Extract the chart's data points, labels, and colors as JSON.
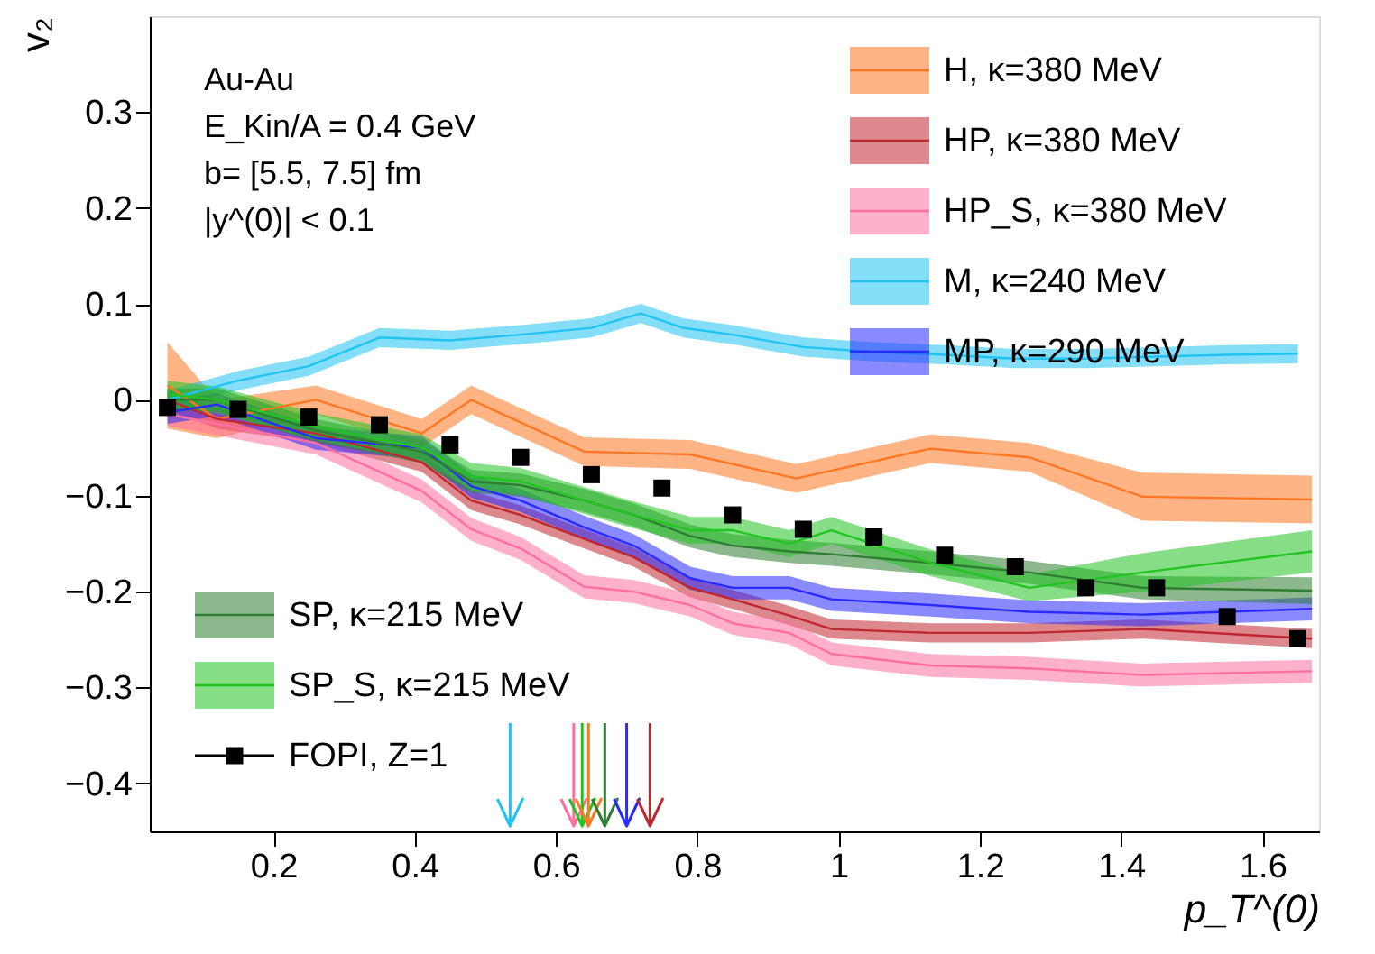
{
  "chart_data": {
    "type": "line",
    "xlabel": "p_T^(0)",
    "ylabel": "v₂",
    "xlim": [
      0.025,
      1.68
    ],
    "ylim": [
      -0.45,
      0.4
    ],
    "xticks": [
      0.2,
      0.4,
      0.6,
      0.8,
      1,
      1.2,
      1.4,
      1.6
    ],
    "yticks": [
      -0.4,
      -0.3,
      -0.2,
      -0.1,
      0,
      0.1,
      0.2,
      0.3
    ],
    "grid": false,
    "legend": "top right",
    "annotations": [
      "Au-Au",
      "E_Kin/A = 0.4 GeV",
      "b= [5.5, 7.5] fm",
      "|y^(0)| < 0.1"
    ],
    "series": [
      {
        "name": "H, κ=380 MeV",
        "color": "#ff7722",
        "x": [
          0.05,
          0.12,
          0.26,
          0.41,
          0.48,
          0.64,
          0.79,
          0.94,
          1.13,
          1.27,
          1.43,
          1.67
        ],
        "values": [
          0.015,
          -0.02,
          0.0,
          -0.035,
          0.0,
          -0.054,
          -0.057,
          -0.082,
          -0.051,
          -0.06,
          -0.101,
          -0.104
        ],
        "lower": [
          -0.03,
          -0.04,
          -0.015,
          -0.05,
          -0.015,
          -0.069,
          -0.072,
          -0.097,
          -0.066,
          -0.075,
          -0.126,
          -0.129
        ],
        "upper": [
          0.06,
          0.0,
          0.015,
          -0.02,
          0.015,
          -0.039,
          -0.042,
          -0.067,
          -0.036,
          -0.045,
          -0.076,
          -0.079
        ]
      },
      {
        "name": "HP, κ=380 MeV",
        "color": "#c0262d",
        "x": [
          0.05,
          0.12,
          0.26,
          0.41,
          0.48,
          0.55,
          0.64,
          0.71,
          0.79,
          0.85,
          0.93,
          0.99,
          1.13,
          1.27,
          1.43,
          1.67
        ],
        "values": [
          0.0,
          -0.02,
          -0.035,
          -0.065,
          -0.105,
          -0.12,
          -0.145,
          -0.164,
          -0.196,
          -0.208,
          -0.225,
          -0.239,
          -0.243,
          -0.243,
          -0.239,
          -0.249
        ],
        "lower": [
          -0.01,
          -0.03,
          -0.045,
          -0.075,
          -0.115,
          -0.13,
          -0.155,
          -0.174,
          -0.206,
          -0.218,
          -0.235,
          -0.249,
          -0.253,
          -0.253,
          -0.249,
          -0.259
        ],
        "upper": [
          0.01,
          -0.01,
          -0.025,
          -0.055,
          -0.095,
          -0.11,
          -0.135,
          -0.154,
          -0.186,
          -0.198,
          -0.215,
          -0.229,
          -0.233,
          -0.233,
          -0.229,
          -0.239
        ]
      },
      {
        "name": "HP_S, κ=380 MeV",
        "color": "#ff6f9f",
        "x": [
          0.05,
          0.12,
          0.26,
          0.41,
          0.48,
          0.55,
          0.64,
          0.71,
          0.79,
          0.85,
          0.93,
          0.99,
          1.13,
          1.27,
          1.43,
          1.67
        ],
        "values": [
          -0.015,
          -0.025,
          -0.045,
          -0.095,
          -0.135,
          -0.155,
          -0.195,
          -0.2,
          -0.214,
          -0.233,
          -0.243,
          -0.265,
          -0.277,
          -0.28,
          -0.287,
          -0.283
        ],
        "lower": [
          -0.027,
          -0.037,
          -0.057,
          -0.107,
          -0.147,
          -0.167,
          -0.207,
          -0.212,
          -0.226,
          -0.245,
          -0.255,
          -0.277,
          -0.289,
          -0.292,
          -0.299,
          -0.295
        ],
        "upper": [
          -0.003,
          -0.013,
          -0.033,
          -0.083,
          -0.123,
          -0.143,
          -0.183,
          -0.188,
          -0.202,
          -0.221,
          -0.231,
          -0.253,
          -0.265,
          -0.268,
          -0.275,
          -0.271
        ]
      },
      {
        "name": "M, κ=240 MeV",
        "color": "#21c3f3",
        "x": [
          0.05,
          0.15,
          0.25,
          0.35,
          0.45,
          0.55,
          0.65,
          0.72,
          0.78,
          0.85,
          0.95,
          1.05,
          1.15,
          1.25,
          1.35,
          1.45,
          1.55,
          1.65
        ],
        "values": [
          0.0,
          0.02,
          0.035,
          0.065,
          0.062,
          0.068,
          0.075,
          0.09,
          0.075,
          0.068,
          0.055,
          0.05,
          0.047,
          0.043,
          0.043,
          0.045,
          0.047,
          0.048
        ],
        "lower": [
          -0.01,
          0.01,
          0.025,
          0.055,
          0.052,
          0.058,
          0.065,
          0.08,
          0.065,
          0.058,
          0.045,
          0.04,
          0.037,
          0.033,
          0.033,
          0.035,
          0.037,
          0.038
        ],
        "upper": [
          0.01,
          0.03,
          0.045,
          0.075,
          0.072,
          0.078,
          0.085,
          0.1,
          0.085,
          0.078,
          0.065,
          0.06,
          0.057,
          0.053,
          0.053,
          0.055,
          0.057,
          0.058
        ]
      },
      {
        "name": "MP, κ=290 MeV",
        "color": "#2a2aff",
        "x": [
          0.05,
          0.12,
          0.26,
          0.41,
          0.48,
          0.55,
          0.64,
          0.71,
          0.79,
          0.85,
          0.93,
          0.99,
          1.13,
          1.27,
          1.43,
          1.67
        ],
        "values": [
          -0.013,
          -0.005,
          -0.04,
          -0.05,
          -0.09,
          -0.105,
          -0.133,
          -0.152,
          -0.186,
          -0.196,
          -0.196,
          -0.208,
          -0.214,
          -0.221,
          -0.224,
          -0.218
        ],
        "lower": [
          -0.025,
          -0.017,
          -0.052,
          -0.062,
          -0.102,
          -0.117,
          -0.145,
          -0.164,
          -0.198,
          -0.208,
          -0.208,
          -0.22,
          -0.226,
          -0.233,
          -0.236,
          -0.23
        ],
        "upper": [
          -0.001,
          0.007,
          -0.028,
          -0.038,
          -0.078,
          -0.093,
          -0.121,
          -0.14,
          -0.174,
          -0.184,
          -0.184,
          -0.196,
          -0.202,
          -0.209,
          -0.212,
          -0.206
        ]
      },
      {
        "name": "SP, κ=215 MeV",
        "color": "#2e7d32",
        "x": [
          0.05,
          0.12,
          0.26,
          0.41,
          0.48,
          0.55,
          0.64,
          0.71,
          0.79,
          0.85,
          0.93,
          0.99,
          1.13,
          1.27,
          1.43,
          1.67
        ],
        "values": [
          0.0,
          0.0,
          -0.032,
          -0.054,
          -0.085,
          -0.089,
          -0.105,
          -0.12,
          -0.142,
          -0.152,
          -0.158,
          -0.161,
          -0.17,
          -0.18,
          -0.196,
          -0.199
        ],
        "lower": [
          -0.012,
          -0.012,
          -0.044,
          -0.066,
          -0.097,
          -0.101,
          -0.117,
          -0.132,
          -0.154,
          -0.164,
          -0.17,
          -0.173,
          -0.182,
          -0.192,
          -0.208,
          -0.213
        ],
        "upper": [
          0.012,
          0.012,
          -0.02,
          -0.042,
          -0.073,
          -0.077,
          -0.093,
          -0.108,
          -0.13,
          -0.14,
          -0.146,
          -0.149,
          -0.158,
          -0.168,
          -0.184,
          -0.185
        ]
      },
      {
        "name": "SP_S, κ=215 MeV",
        "color": "#22c422",
        "x": [
          0.05,
          0.12,
          0.26,
          0.41,
          0.48,
          0.55,
          0.64,
          0.71,
          0.79,
          0.85,
          0.93,
          0.99,
          1.13,
          1.27,
          1.43,
          1.67
        ],
        "values": [
          0.006,
          0.0,
          -0.028,
          -0.05,
          -0.08,
          -0.085,
          -0.105,
          -0.12,
          -0.136,
          -0.136,
          -0.15,
          -0.136,
          -0.17,
          -0.196,
          -0.18,
          -0.158
        ],
        "lower": [
          -0.008,
          -0.014,
          -0.042,
          -0.064,
          -0.094,
          -0.099,
          -0.119,
          -0.134,
          -0.15,
          -0.15,
          -0.164,
          -0.15,
          -0.184,
          -0.21,
          -0.2,
          -0.18
        ],
        "upper": [
          0.02,
          0.014,
          -0.014,
          -0.036,
          -0.066,
          -0.071,
          -0.091,
          -0.106,
          -0.122,
          -0.122,
          -0.136,
          -0.122,
          -0.156,
          -0.182,
          -0.16,
          -0.136
        ]
      },
      {
        "name": "FOPI, Z=1",
        "type": "scatter",
        "marker": "square",
        "color": "#000000",
        "x": [
          0.05,
          0.15,
          0.25,
          0.35,
          0.45,
          0.55,
          0.65,
          0.75,
          0.85,
          0.95,
          1.05,
          1.15,
          1.25,
          1.35,
          1.45,
          1.55,
          1.65
        ],
        "values": [
          -0.008,
          -0.01,
          -0.018,
          -0.026,
          -0.047,
          -0.06,
          -0.078,
          -0.092,
          -0.12,
          -0.135,
          -0.143,
          -0.162,
          -0.174,
          -0.196,
          -0.196,
          -0.226,
          -0.249
        ]
      }
    ],
    "ref_lines": [
      {
        "axis": "x",
        "value": 0.535,
        "color": "#21c3f3"
      },
      {
        "axis": "x",
        "value": 0.625,
        "color": "#ff6f9f"
      },
      {
        "axis": "x",
        "value": 0.637,
        "color": "#22c422"
      },
      {
        "axis": "x",
        "value": 0.646,
        "color": "#ff7722"
      },
      {
        "axis": "x",
        "value": 0.669,
        "color": "#2e7d32"
      },
      {
        "axis": "x",
        "value": 0.7,
        "color": "#2a2aff"
      },
      {
        "axis": "x",
        "value": 0.733,
        "color": "#c0262d"
      }
    ]
  }
}
